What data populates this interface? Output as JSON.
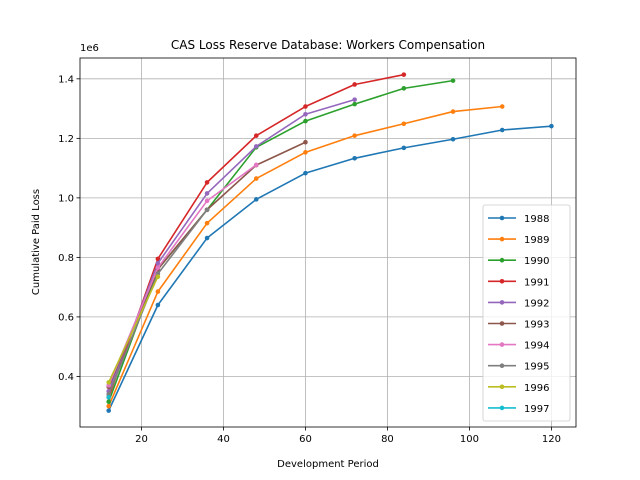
{
  "chart_data": {
    "type": "line",
    "title": "CAS Loss Reserve Database: Workers Compensation",
    "xlabel": "Development Period",
    "ylabel": "Cumulative Paid Loss",
    "y_multiplier_label": "1e6",
    "xlim": [
      5,
      126
    ],
    "ylim": [
      230000,
      1470000
    ],
    "xticks": [
      20,
      40,
      60,
      80,
      100,
      120
    ],
    "xtick_labels": [
      "20",
      "40",
      "60",
      "80",
      "100",
      "120"
    ],
    "yticks": [
      400000,
      600000,
      800000,
      1000000,
      1200000,
      1400000
    ],
    "ytick_labels": [
      "0.4",
      "0.6",
      "0.8",
      "1.0",
      "1.2",
      "1.4"
    ],
    "grid": true,
    "legend_position": "lower-right",
    "series": [
      {
        "name": "1988",
        "color": "#1f77b4",
        "x": [
          12,
          24,
          36,
          48,
          60,
          72,
          84,
          96,
          108,
          120
        ],
        "values": [
          285000,
          640000,
          865000,
          995000,
          1083000,
          1133000,
          1168000,
          1197000,
          1228000,
          1241000
        ]
      },
      {
        "name": "1989",
        "color": "#ff7f0e",
        "x": [
          12,
          24,
          36,
          48,
          60,
          72,
          84,
          96,
          108
        ],
        "values": [
          300000,
          685000,
          915000,
          1065000,
          1153000,
          1209000,
          1249000,
          1290000,
          1307000
        ]
      },
      {
        "name": "1990",
        "color": "#2ca02c",
        "x": [
          12,
          24,
          36,
          48,
          60,
          72,
          84,
          96
        ],
        "values": [
          315000,
          760000,
          960000,
          1170000,
          1258000,
          1315000,
          1368000,
          1394000
        ]
      },
      {
        "name": "1991",
        "color": "#d62728",
        "x": [
          12,
          24,
          36,
          48,
          60,
          72,
          84
        ],
        "values": [
          330000,
          795000,
          1052000,
          1209000,
          1307000,
          1381000,
          1414000
        ]
      },
      {
        "name": "1992",
        "color": "#9467bd",
        "x": [
          12,
          24,
          36,
          48,
          60,
          72
        ],
        "values": [
          350000,
          780000,
          1015000,
          1173000,
          1281000,
          1330000
        ]
      },
      {
        "name": "1993",
        "color": "#8c564b",
        "x": [
          12,
          24,
          36,
          48,
          60
        ],
        "values": [
          365000,
          760000,
          960000,
          1110000,
          1187000
        ]
      },
      {
        "name": "1994",
        "color": "#e377c2",
        "x": [
          12,
          24,
          36,
          48
        ],
        "values": [
          370000,
          765000,
          990000,
          1111000
        ]
      },
      {
        "name": "1995",
        "color": "#7f7f7f",
        "x": [
          12,
          24,
          36
        ],
        "values": [
          340000,
          745000,
          960000
        ]
      },
      {
        "name": "1996",
        "color": "#bcbd22",
        "x": [
          12,
          24
        ],
        "values": [
          380000,
          735000
        ]
      },
      {
        "name": "1997",
        "color": "#17becf",
        "x": [
          12
        ],
        "values": [
          330000
        ]
      }
    ]
  }
}
